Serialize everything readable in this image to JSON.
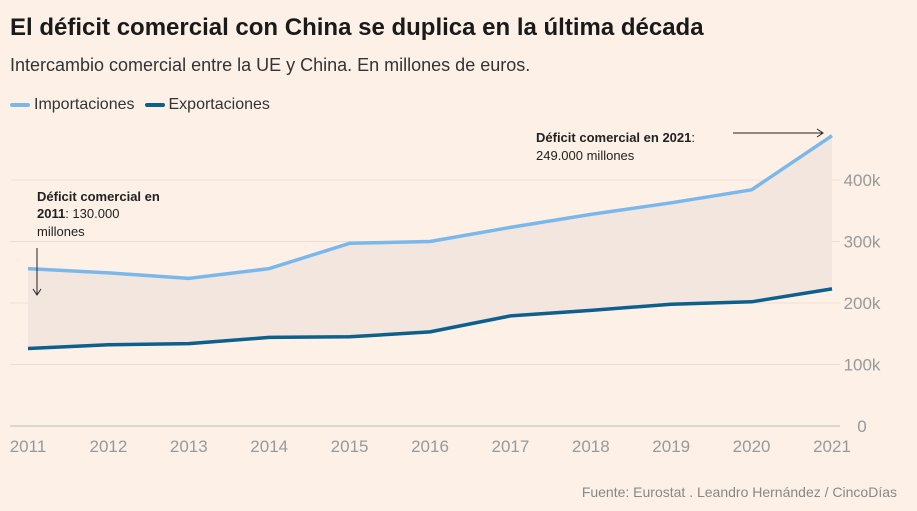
{
  "title": "El déficit comercial con China se duplica en la última década",
  "subtitle": "Intercambio comercial entre la UE y China. En millones de euros.",
  "source": "Fuente: Eurostat . Leandro Hernández / CincoDías",
  "colors": {
    "background": "#fdf0e6",
    "importaciones": "#7ab8ec",
    "exportaciones": "#0d5f8c",
    "fill": "#f3e6df"
  },
  "chart_data": {
    "type": "line",
    "x": [
      "2011",
      "2012",
      "2013",
      "2014",
      "2015",
      "2016",
      "2017",
      "2018",
      "2019",
      "2020",
      "2021"
    ],
    "series": [
      {
        "name": "Importaciones",
        "values": [
          256,
          249,
          240,
          256,
          297,
          300,
          323,
          344,
          363,
          384,
          472
        ]
      },
      {
        "name": "Exportaciones",
        "values": [
          126,
          132,
          134,
          144,
          145,
          153,
          179,
          188,
          198,
          202,
          223
        ]
      }
    ],
    "ylim": [
      0,
      480
    ],
    "yticks": [
      0,
      100,
      200,
      300,
      400
    ],
    "ytick_labels": [
      "0",
      "100k",
      "200k",
      "300k",
      "400k"
    ],
    "legend_position": "top-left",
    "grid": true,
    "annotations": [
      {
        "bold": "Déficit comercial en",
        "bold2": "2011",
        "rest": ": 130.000",
        "line3": "millones"
      },
      {
        "bold": "Déficit comercial en 2021",
        "rest": ":",
        "line2": "249.000 millones"
      }
    ]
  }
}
